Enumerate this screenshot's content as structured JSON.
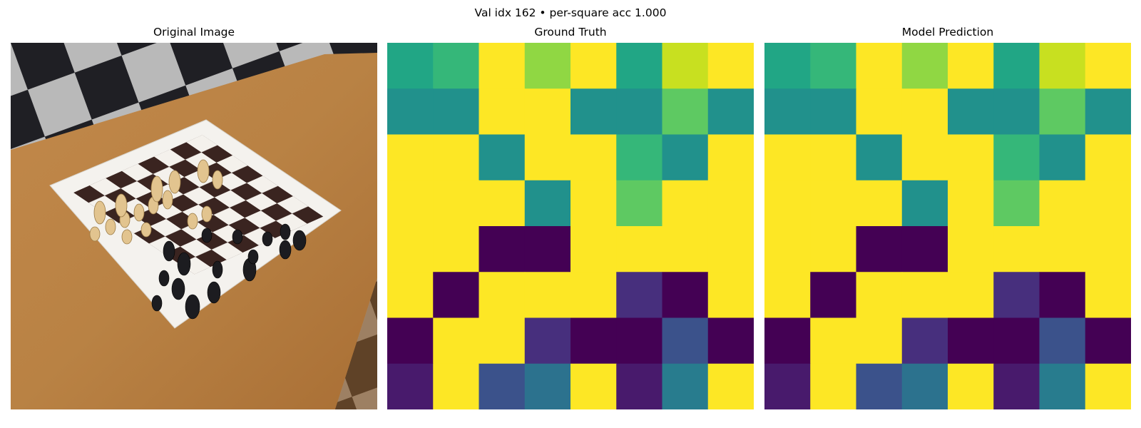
{
  "figure": {
    "suptitle": "Val idx 162  •  per-square acc 1.000"
  },
  "panels": [
    {
      "title": "Original Image"
    },
    {
      "title": "Ground Truth"
    },
    {
      "title": "Model Prediction"
    }
  ],
  "colormap": "viridis",
  "chart_data": [
    {
      "type": "heatmap",
      "title": "Ground Truth",
      "rows": 8,
      "cols": 8,
      "colors": [
        [
          "#21a685",
          "#35b779",
          "#fde725",
          "#90d743",
          "#fde725",
          "#21a685",
          "#c8e020",
          "#fde725"
        ],
        [
          "#21918c",
          "#21918c",
          "#fde725",
          "#fde725",
          "#21918c",
          "#21918c",
          "#5ec962",
          "#21918c"
        ],
        [
          "#fde725",
          "#fde725",
          "#21918c",
          "#fde725",
          "#fde725",
          "#35b779",
          "#21918c",
          "#fde725"
        ],
        [
          "#fde725",
          "#fde725",
          "#fde725",
          "#21918c",
          "#fde725",
          "#5ec962",
          "#fde725",
          "#fde725"
        ],
        [
          "#fde725",
          "#fde725",
          "#440154",
          "#440154",
          "#fde725",
          "#fde725",
          "#fde725",
          "#fde725"
        ],
        [
          "#fde725",
          "#440154",
          "#fde725",
          "#fde725",
          "#fde725",
          "#472f7d",
          "#440154",
          "#fde725"
        ],
        [
          "#440154",
          "#fde725",
          "#fde725",
          "#472f7d",
          "#440154",
          "#440154",
          "#3b528b",
          "#440154"
        ],
        [
          "#481a6c",
          "#fde725",
          "#3b528b",
          "#2c728e",
          "#fde725",
          "#481a6c",
          "#287c8e",
          "#fde725"
        ]
      ]
    },
    {
      "type": "heatmap",
      "title": "Model Prediction",
      "rows": 8,
      "cols": 8,
      "colors": [
        [
          "#21a685",
          "#35b779",
          "#fde725",
          "#90d743",
          "#fde725",
          "#21a685",
          "#c8e020",
          "#fde725"
        ],
        [
          "#21918c",
          "#21918c",
          "#fde725",
          "#fde725",
          "#21918c",
          "#21918c",
          "#5ec962",
          "#21918c"
        ],
        [
          "#fde725",
          "#fde725",
          "#21918c",
          "#fde725",
          "#fde725",
          "#35b779",
          "#21918c",
          "#fde725"
        ],
        [
          "#fde725",
          "#fde725",
          "#fde725",
          "#21918c",
          "#fde725",
          "#5ec962",
          "#fde725",
          "#fde725"
        ],
        [
          "#fde725",
          "#fde725",
          "#440154",
          "#440154",
          "#fde725",
          "#fde725",
          "#fde725",
          "#fde725"
        ],
        [
          "#fde725",
          "#440154",
          "#fde725",
          "#fde725",
          "#fde725",
          "#472f7d",
          "#440154",
          "#fde725"
        ],
        [
          "#440154",
          "#fde725",
          "#fde725",
          "#472f7d",
          "#440154",
          "#440154",
          "#3b528b",
          "#440154"
        ],
        [
          "#481a6c",
          "#fde725",
          "#3b528b",
          "#2c728e",
          "#fde725",
          "#481a6c",
          "#287c8e",
          "#fde725"
        ]
      ]
    }
  ]
}
